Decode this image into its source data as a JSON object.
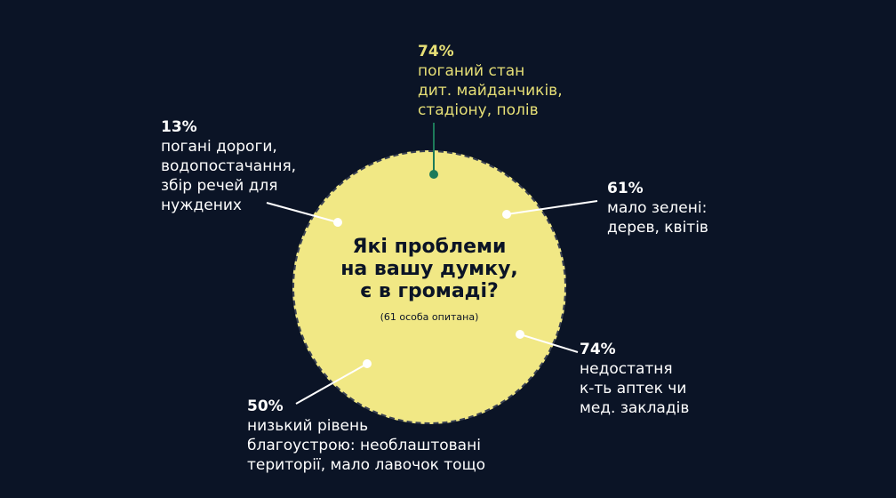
{
  "center": {
    "question_lines": [
      "Які проблеми",
      "на вашу думку,",
      "є в громаді?"
    ],
    "respondents": "(61 особа опитана)"
  },
  "callouts": [
    {
      "id": "top",
      "percent": "74%",
      "lines": [
        "поганий стан",
        "дит. майданчиків,",
        "стадіону, полів"
      ]
    },
    {
      "id": "left",
      "percent": "13%",
      "lines": [
        "погані дороги,",
        "водопостачання,",
        "збір речей для",
        "нуждених"
      ]
    },
    {
      "id": "right",
      "percent": "61%",
      "lines": [
        "мало зелені:",
        "дерев, квітів"
      ]
    },
    {
      "id": "bottom-right",
      "percent": "74%",
      "lines": [
        "недостатня",
        "к-ть аптек чи",
        "мед. закладів"
      ]
    },
    {
      "id": "bottom-left",
      "percent": "50%",
      "lines": [
        "низький рівень",
        "благоустрою: необлаштовані",
        "території, мало лавочок тощо"
      ]
    }
  ],
  "colors": {
    "background": "#0b1426",
    "circle_fill": "#f1e885",
    "highlight_text": "#e6df76",
    "highlight_marker": "#1d7a5a",
    "text": "#ffffff"
  }
}
